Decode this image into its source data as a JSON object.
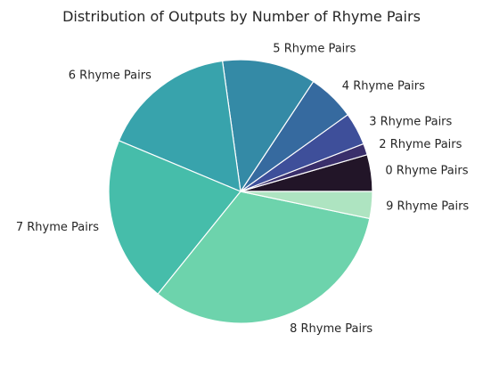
{
  "chart_data": {
    "type": "pie",
    "title": "Distribution of Outputs by Number of Rhyme Pairs",
    "categories": [
      "0 Rhyme Pairs",
      "2 Rhyme Pairs",
      "3 Rhyme Pairs",
      "4 Rhyme Pairs",
      "5 Rhyme Pairs",
      "6 Rhyme Pairs",
      "7 Rhyme Pairs",
      "8 Rhyme Pairs",
      "9 Rhyme Pairs"
    ],
    "values": [
      4.5,
      1.4,
      4.0,
      5.8,
      11.5,
      16.5,
      20.5,
      32.5,
      3.3
    ],
    "colors": [
      "#221528",
      "#3a2f6b",
      "#3e4f9a",
      "#366a9f",
      "#348aa6",
      "#38a3ac",
      "#46bdaa",
      "#6dd3ac",
      "#aee4c1"
    ],
    "start_angle": 0,
    "direction": "counterclockwise",
    "edge_color": "#ffffff",
    "labels_outside": true
  }
}
